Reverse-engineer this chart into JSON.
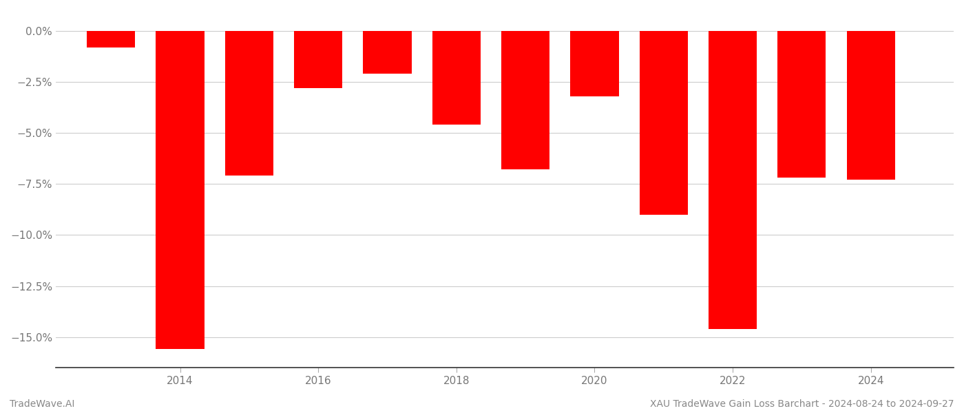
{
  "x_positions": [
    2013,
    2014,
    2015,
    2016,
    2017,
    2018,
    2019,
    2020,
    2021,
    2022,
    2023,
    2024
  ],
  "values": [
    -0.8,
    -15.6,
    -7.1,
    -2.8,
    -2.1,
    -4.6,
    -6.8,
    -3.2,
    -9.0,
    -14.6,
    -7.2,
    -7.3
  ],
  "bar_color": "#ff0000",
  "footer_left": "TradeWave.AI",
  "footer_right": "XAU TradeWave Gain Loss Barchart - 2024-08-24 to 2024-09-27",
  "ylim": [
    -16.5,
    0.6
  ],
  "yticks": [
    0.0,
    -2.5,
    -5.0,
    -7.5,
    -10.0,
    -12.5,
    -15.0
  ],
  "xticks": [
    2014,
    2016,
    2018,
    2020,
    2022,
    2024
  ],
  "bar_width": 0.7,
  "xlim_left": 2012.2,
  "xlim_right": 2025.2,
  "background_color": "#ffffff",
  "grid_color": "#cccccc",
  "tick_label_color": "#777777",
  "footer_fontsize": 10,
  "tick_fontsize": 11
}
